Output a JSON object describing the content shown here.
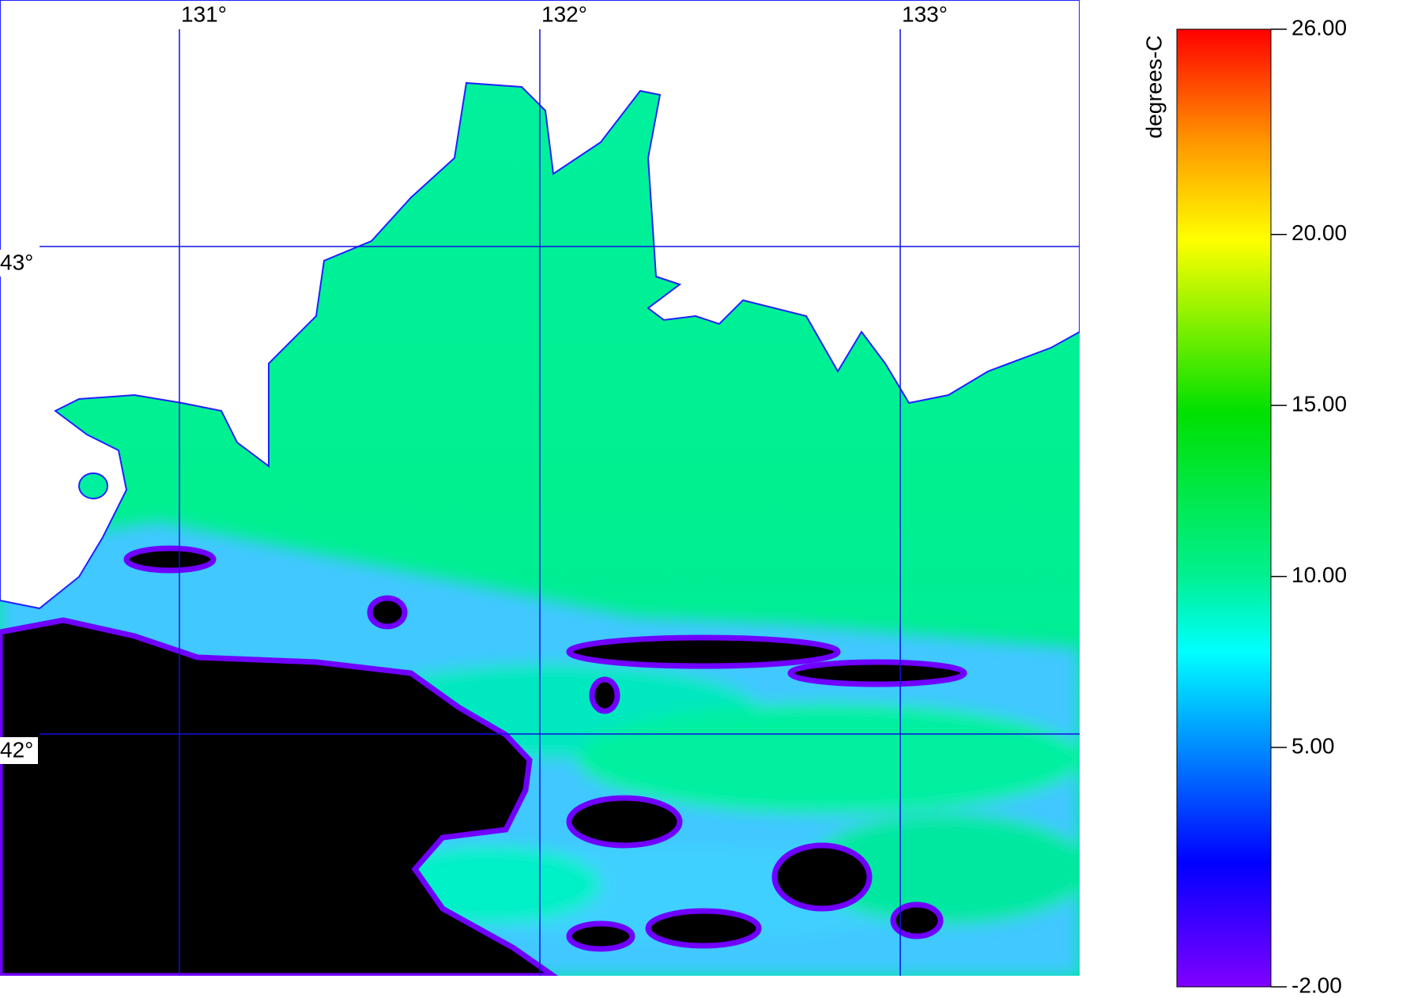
{
  "map": {
    "longitudes": [
      {
        "value": 131,
        "label": "131°"
      },
      {
        "value": 132,
        "label": "132°"
      },
      {
        "value": 133,
        "label": "133°"
      }
    ],
    "latitudes": [
      {
        "value": 43,
        "label": "43°"
      },
      {
        "value": 42,
        "label": "42°"
      }
    ]
  },
  "colorbar": {
    "title": "degrees-C",
    "ticks": [
      {
        "value": 26,
        "label": "26.00"
      },
      {
        "value": 20,
        "label": "20.00"
      },
      {
        "value": 15,
        "label": "15.00"
      },
      {
        "value": 10,
        "label": "10.00"
      },
      {
        "value": 5,
        "label": "5.00"
      },
      {
        "value": -2,
        "label": "-2.00"
      }
    ]
  }
}
